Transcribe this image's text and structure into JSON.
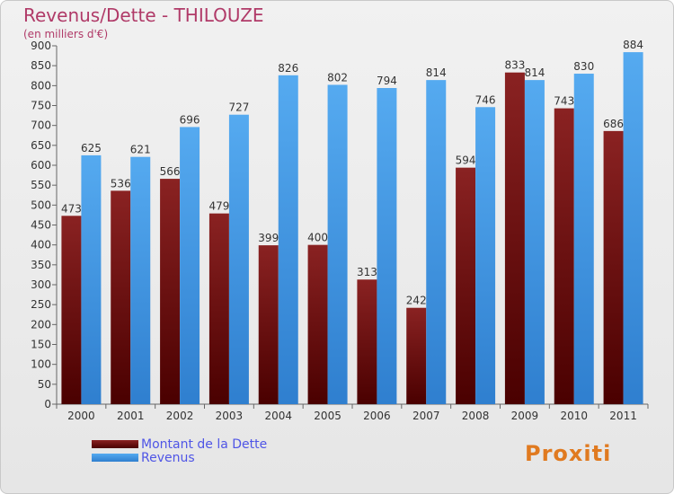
{
  "header": {
    "title": "Revenus/Dette - THILOUZE",
    "subtitle": "(en milliers d'€)"
  },
  "legend": {
    "debt_label": "Montant de la Dette",
    "revenue_label": "Revenus"
  },
  "logo": {
    "text": "Proxiti"
  },
  "colors": {
    "debt": "#7b1515",
    "revenue": "#3f9ae6",
    "title": "#b03a68",
    "legend_text": "#4f55e6"
  },
  "chart_data": {
    "type": "bar",
    "title": "Revenus/Dette - THILOUZE",
    "ylabel": "(en milliers d'€)",
    "xlabel": "",
    "categories": [
      "2000",
      "2001",
      "2002",
      "2003",
      "2004",
      "2005",
      "2006",
      "2007",
      "2008",
      "2009",
      "2010",
      "2011"
    ],
    "series": [
      {
        "name": "Montant de la Dette",
        "values": [
          473,
          536,
          566,
          479,
          399,
          400,
          313,
          242,
          594,
          833,
          743,
          686
        ]
      },
      {
        "name": "Revenus",
        "values": [
          625,
          621,
          696,
          727,
          826,
          802,
          794,
          814,
          746,
          814,
          830,
          884
        ]
      }
    ],
    "ylim": [
      0,
      900
    ],
    "yticks": [
      0,
      50,
      100,
      150,
      200,
      250,
      300,
      350,
      400,
      450,
      500,
      550,
      600,
      650,
      700,
      750,
      800,
      850,
      900
    ],
    "grid": false,
    "legend_position": "bottom-left"
  }
}
